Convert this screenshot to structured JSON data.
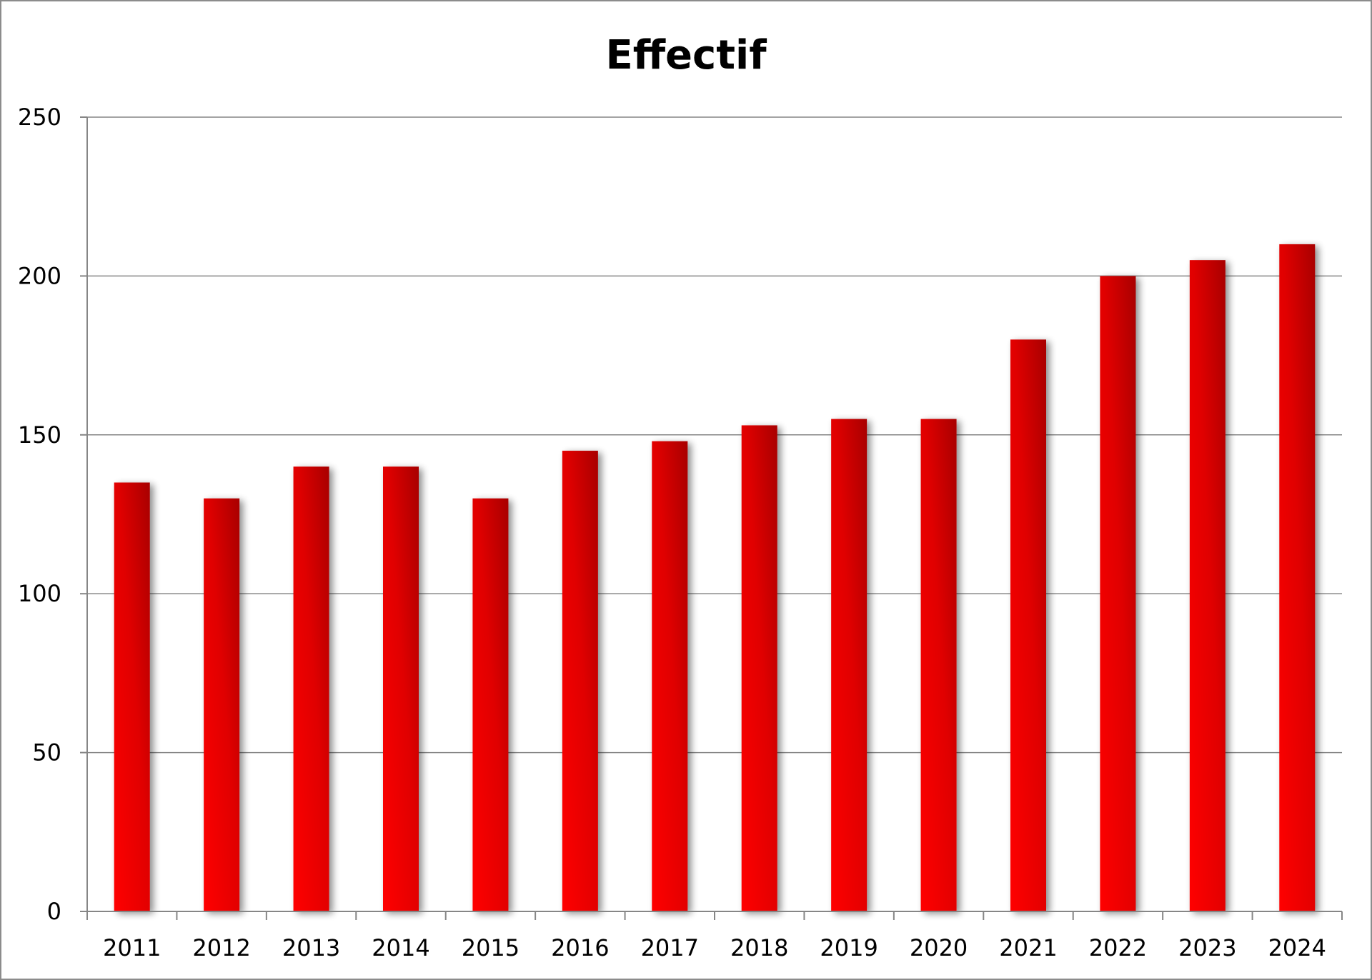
{
  "chart_data": {
    "type": "bar",
    "title": "Effectif",
    "xlabel": "",
    "ylabel": "",
    "categories": [
      "2011",
      "2012",
      "2013",
      "2014",
      "2015",
      "2016",
      "2017",
      "2018",
      "2019",
      "2020",
      "2021",
      "2022",
      "2023",
      "2024"
    ],
    "series": [
      {
        "values": [
          135,
          130,
          140,
          140,
          130,
          145,
          148,
          153,
          155,
          155,
          180,
          200,
          205,
          210
        ]
      }
    ],
    "ylim": [
      0,
      250
    ],
    "yticks": [
      "0",
      "50",
      "100",
      "150",
      "200",
      "250"
    ],
    "grid": true,
    "legend": "none",
    "colors": {
      "bar": "#ee0000",
      "bar_dark": "#b00000",
      "grid": "#868686",
      "axis": "#868686"
    }
  }
}
